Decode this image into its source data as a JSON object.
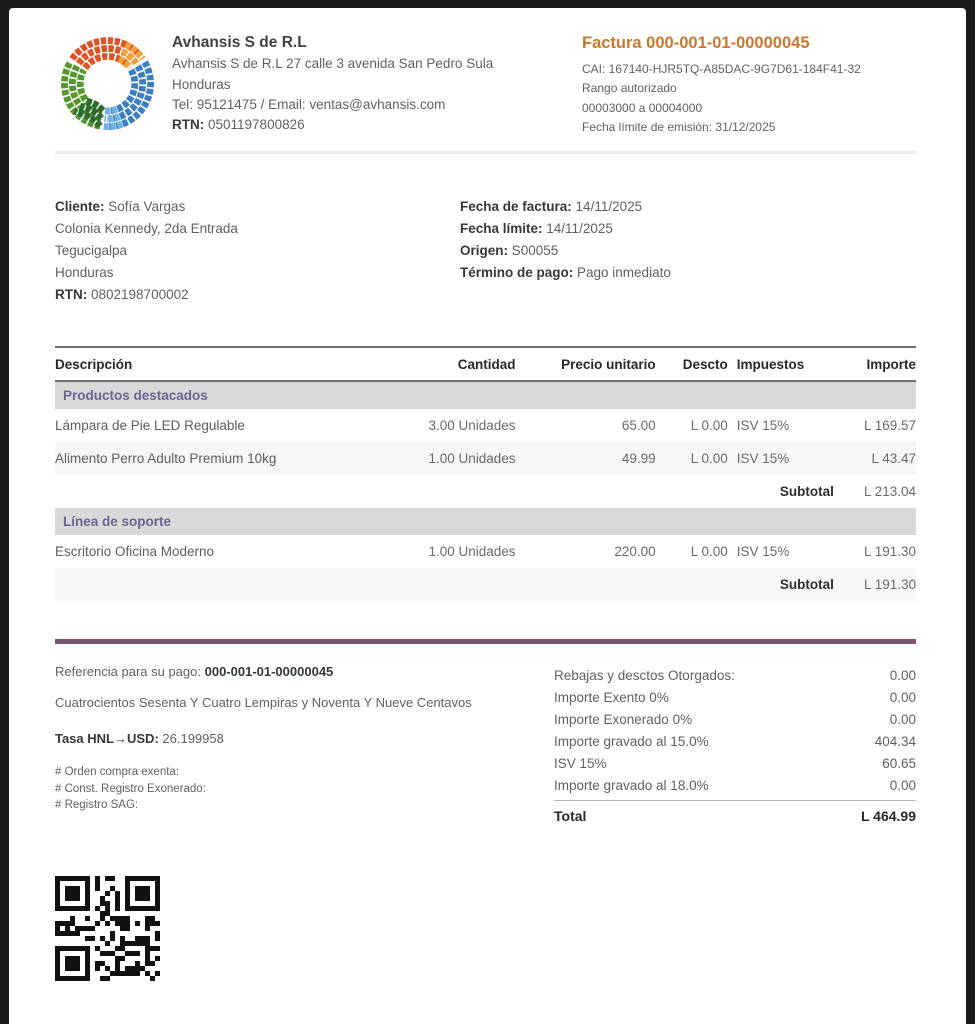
{
  "company": {
    "name": "Avhansis S de R.L",
    "address_line1": "Avhansis S de R.L 27 calle 3 avenida San Pedro Sula",
    "address_line2": "Honduras",
    "contact": "Tel: 95121475 / Email: ventas@avhansis.com",
    "rtn_label": "RTN:",
    "rtn_value": " 0501197800826"
  },
  "invoice": {
    "title": "Factura 000-001-01-00000045",
    "cai": "CAI: 167140-HJR5TQ-A85DAC-9G7D61-184F41-32",
    "range_label": "Rango autorizado",
    "range_value": "00003000 a 00004000",
    "emission_limit": "Fecha límite de emisión: 31/12/2025"
  },
  "customer": {
    "label": "Cliente:",
    "name": " Sofía Vargas",
    "address1": "Colonia Kennedy, 2da Entrada",
    "city": "Tegucigalpa",
    "country": "Honduras",
    "rtn_label": "RTN:",
    "rtn_value": " 0802198700002"
  },
  "details": [
    {
      "label": "Fecha de factura:",
      "value": " 14/11/2025"
    },
    {
      "label": "Fecha límite:",
      "value": " 14/11/2025"
    },
    {
      "label": "Origen:",
      "value": " S00055"
    },
    {
      "label": "Término de pago:",
      "value": " Pago inmediato"
    }
  ],
  "table": {
    "headers": [
      "Descripción",
      "Cantidad",
      "Precio unitario",
      "Descto",
      "Impuestos",
      "Importe"
    ],
    "rows": [
      {
        "type": "section",
        "label": "Productos destacados"
      },
      {
        "type": "item",
        "description": "Lámpara de Pie LED Regulable",
        "qty": "3.00 Unidades",
        "unit_price": "65.00",
        "discount": "L 0.00",
        "taxes": "ISV 15%",
        "amount": "L 169.57"
      },
      {
        "type": "item",
        "description": "Alimento Perro Adulto Premium 10kg",
        "qty": "1.00 Unidades",
        "unit_price": "49.99",
        "discount": "L 0.00",
        "taxes": "ISV 15%",
        "amount": "L 43.47"
      },
      {
        "type": "subtotal",
        "label": "Subtotal",
        "amount": "L 213.04"
      },
      {
        "type": "section",
        "label": "Línea de soporte"
      },
      {
        "type": "item",
        "description": "Escritorio Oficina Moderno",
        "qty": "1.00 Unidades",
        "unit_price": "220.00",
        "discount": "L 0.00",
        "taxes": "ISV 15%",
        "amount": "L 191.30"
      },
      {
        "type": "subtotal",
        "label": "Subtotal",
        "amount": "L 191.30"
      }
    ]
  },
  "payment": {
    "reference_label": "Referencia para su pago: ",
    "reference_value": "000-001-01-00000045",
    "amount_in_words": "Cuatrocientos Sesenta Y Cuatro Lempiras y Noventa Y Nueve Centavos",
    "rate_label": "Tasa HNL→USD:",
    "rate_value": " 26.199958",
    "exempt_lines": [
      "# Orden compra exenta:",
      "# Const. Registro Exonerado:",
      "# Registro SAG:"
    ]
  },
  "totals": {
    "lines": [
      {
        "label": "Rebajas y desctos Otorgados:",
        "value": "0.00"
      },
      {
        "label": "Importe Exento 0%",
        "value": "0.00"
      },
      {
        "label": "Importe Exonerado 0%",
        "value": "0.00"
      },
      {
        "label": "Importe gravado al 15.0%",
        "value": "404.34"
      },
      {
        "label": "ISV 15%",
        "value": "60.65"
      },
      {
        "label": "Importe gravado al 18.0%",
        "value": "0.00"
      }
    ],
    "total_label": "Total",
    "total_value": "L 464.99"
  },
  "icons": {
    "logo": "company-logo",
    "qr": "qr-code"
  },
  "colors": {
    "accent_orange": "#c9772c",
    "divider_purple": "#7d5470",
    "section_text": "#6b6593",
    "section_bg": "#d9d9d9",
    "row_alt_bg": "#f7f7f7",
    "frame_bg": "#1b1b1b"
  }
}
